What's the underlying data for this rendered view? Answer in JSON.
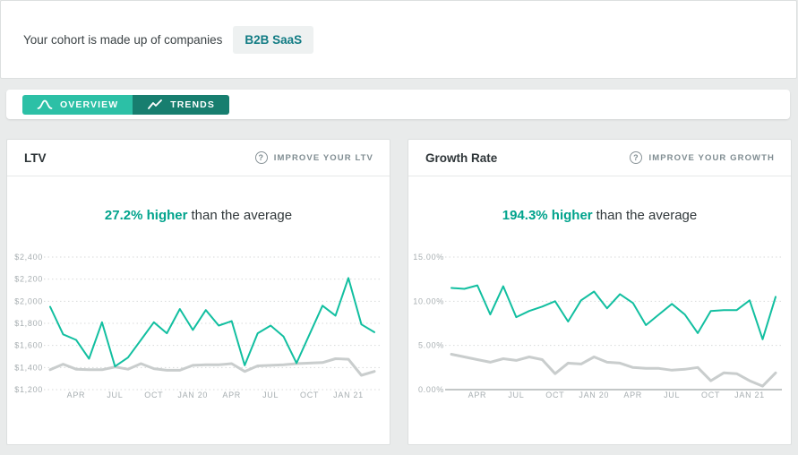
{
  "cohort_bar": {
    "text": "Your cohort is made up of companies",
    "chip": "B2B SaaS",
    "chip_bg": "#eef1f1",
    "chip_color": "#107b83"
  },
  "tabs": [
    {
      "label": "OVERVIEW",
      "icon": "bell-curve-icon",
      "bg": "#2cc0a6",
      "active": true
    },
    {
      "label": "TRENDS",
      "icon": "trend-line-icon",
      "bg": "#177e6f",
      "active": false
    }
  ],
  "cards": {
    "ltv": {
      "help_label": "IMPROVE YOUR LTV",
      "highlight": "27.2% higher",
      "suffix": "than the average"
    },
    "growth": {
      "help_label": "IMPROVE YOUR GROWTH",
      "highlight": "194.3% higher",
      "suffix": "than the average"
    }
  },
  "colors": {
    "accent_line": "#12bfa0",
    "average_line": "#c9cdcd",
    "accent_text": "#00a38c",
    "page_bg": "#e9ebeb"
  },
  "chart_data": [
    {
      "type": "line",
      "title": "LTV",
      "ylim": [
        1200,
        2400
      ],
      "grid": "dotted-horizontal",
      "legend": "none",
      "y_ticks": [
        {
          "label": "$2,400",
          "value": 2400
        },
        {
          "label": "$2,200",
          "value": 2200
        },
        {
          "label": "$2,000",
          "value": 2000
        },
        {
          "label": "$1,800",
          "value": 1800
        },
        {
          "label": "$1,600",
          "value": 1600
        },
        {
          "label": "$1,400",
          "value": 1400
        },
        {
          "label": "$1,200",
          "value": 1200
        }
      ],
      "x_ticks": [
        {
          "label": "APR",
          "index": 2
        },
        {
          "label": "JUL",
          "index": 5
        },
        {
          "label": "OCT",
          "index": 8
        },
        {
          "label": "JAN 20",
          "index": 11
        },
        {
          "label": "APR",
          "index": 14
        },
        {
          "label": "JUL",
          "index": 17
        },
        {
          "label": "OCT",
          "index": 20
        },
        {
          "label": "JAN 21",
          "index": 23
        }
      ],
      "series": [
        {
          "name": "cohort",
          "color": "#12bfa0",
          "width": 2,
          "values": [
            1950,
            1700,
            1650,
            1480,
            1810,
            1410,
            1490,
            1650,
            1810,
            1710,
            1930,
            1740,
            1920,
            1780,
            1820,
            1420,
            1710,
            1780,
            1680,
            1440,
            1700,
            1960,
            1870,
            2210,
            1790,
            1720
          ]
        },
        {
          "name": "average",
          "color": "#c9cdcd",
          "width": 3,
          "values": [
            1380,
            1430,
            1385,
            1380,
            1380,
            1405,
            1385,
            1435,
            1390,
            1375,
            1375,
            1420,
            1425,
            1425,
            1435,
            1365,
            1415,
            1420,
            1425,
            1435,
            1440,
            1445,
            1480,
            1475,
            1330,
            1365
          ]
        }
      ]
    },
    {
      "type": "line",
      "title": "Growth Rate",
      "ylim": [
        0,
        15
      ],
      "grid": "dotted-horizontal",
      "legend": "none",
      "y_ticks": [
        {
          "label": "15.00%",
          "value": 15
        },
        {
          "label": "10.00%",
          "value": 10
        },
        {
          "label": "5.00%",
          "value": 5
        },
        {
          "label": "0.00%",
          "value": 0,
          "solid": true
        }
      ],
      "x_ticks": [
        {
          "label": "APR",
          "index": 2
        },
        {
          "label": "JUL",
          "index": 5
        },
        {
          "label": "OCT",
          "index": 8
        },
        {
          "label": "JAN 20",
          "index": 11
        },
        {
          "label": "APR",
          "index": 14
        },
        {
          "label": "JUL",
          "index": 17
        },
        {
          "label": "OCT",
          "index": 20
        },
        {
          "label": "JAN 21",
          "index": 23
        }
      ],
      "series": [
        {
          "name": "cohort",
          "color": "#12bfa0",
          "width": 2,
          "values": [
            11.5,
            11.4,
            11.8,
            8.5,
            11.7,
            8.2,
            8.9,
            9.4,
            10.0,
            7.7,
            10.1,
            11.1,
            9.2,
            10.8,
            9.8,
            7.3,
            8.5,
            9.7,
            8.5,
            6.4,
            8.9,
            9.0,
            9.0,
            10.1,
            5.7,
            10.5
          ]
        },
        {
          "name": "average",
          "color": "#c9cdcd",
          "width": 3,
          "values": [
            4.0,
            3.7,
            3.4,
            3.1,
            3.5,
            3.3,
            3.7,
            3.4,
            1.8,
            3.0,
            2.9,
            3.7,
            3.1,
            3.0,
            2.5,
            2.4,
            2.4,
            2.2,
            2.3,
            2.5,
            1.0,
            1.9,
            1.8,
            1.0,
            0.4,
            1.9
          ]
        }
      ]
    }
  ]
}
